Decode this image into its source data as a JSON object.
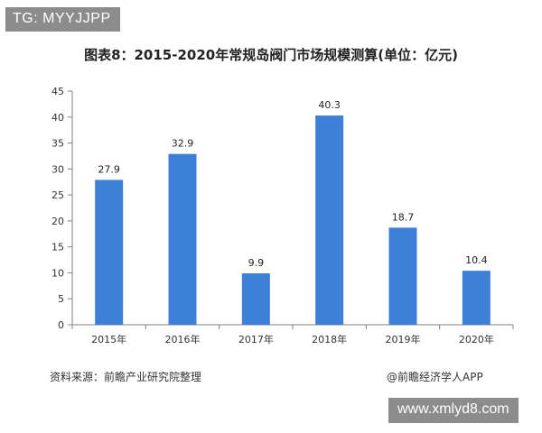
{
  "watermark_top": "TG: MYYJJPP",
  "watermark_bottom": "www.xmlyd8.com",
  "source": "资料来源：前瞻产业研究院整理",
  "brand": "@前瞻经济学人APP",
  "chart_data": {
    "type": "bar",
    "title": "图表8：2015-2020年常规岛阀门市场规模测算(单位：亿元)",
    "categories": [
      "2015年",
      "2016年",
      "2017年",
      "2018年",
      "2019年",
      "2020年"
    ],
    "values": [
      27.9,
      32.9,
      9.9,
      40.3,
      18.7,
      10.4
    ],
    "value_labels": [
      "27.9",
      "32.9",
      "9.9",
      "40.3",
      "18.7",
      "10.4"
    ],
    "ylim": [
      0,
      45
    ],
    "yticks": [
      0,
      5,
      10,
      15,
      20,
      25,
      30,
      35,
      40,
      45
    ],
    "grid": false,
    "bar_color": "#3d7fd9"
  }
}
